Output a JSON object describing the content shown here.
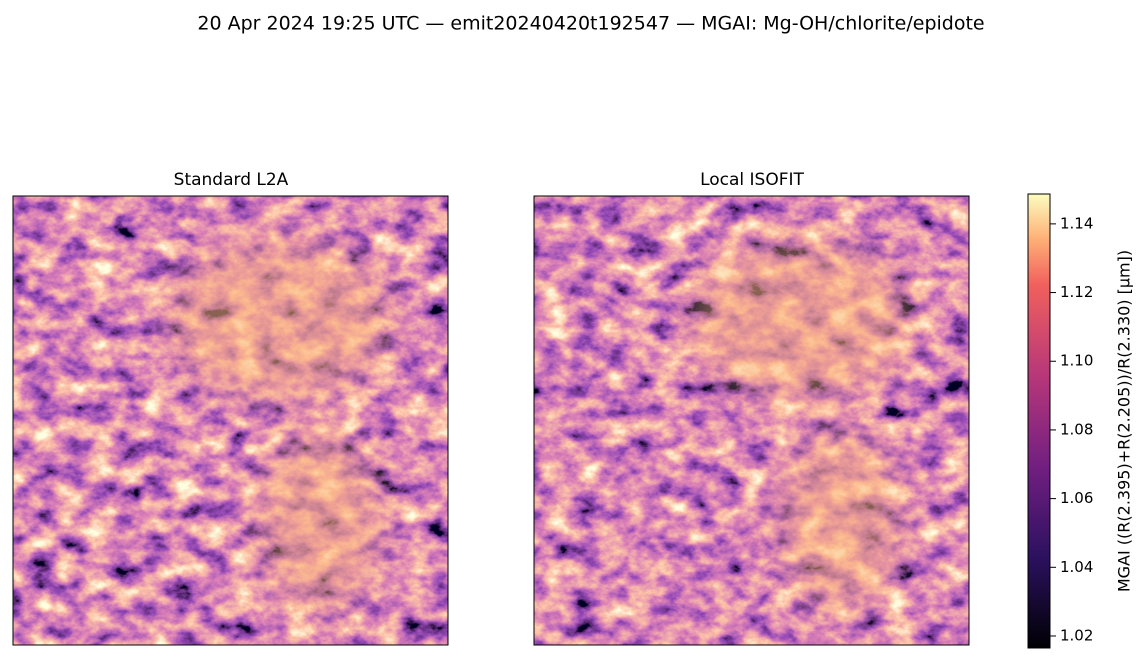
{
  "title": "20 Apr 2024 19:25 UTC — emit20240420t192547 — MGAI: Mg-OH/chlorite/epidote",
  "panels": [
    {
      "title": "Standard L2A"
    },
    {
      "title": "Local ISOFIT"
    }
  ],
  "colorbar": {
    "label": "MGAI  ((R(2.395)+R(2.205))/R(2.330)  [µm])",
    "lim": [
      1.0165,
      1.1487
    ],
    "ticks": [
      1.02,
      1.04,
      1.06,
      1.08,
      {
        "value": 1.1,
        "label": "1.10"
      },
      1.12,
      1.14
    ]
  }
}
